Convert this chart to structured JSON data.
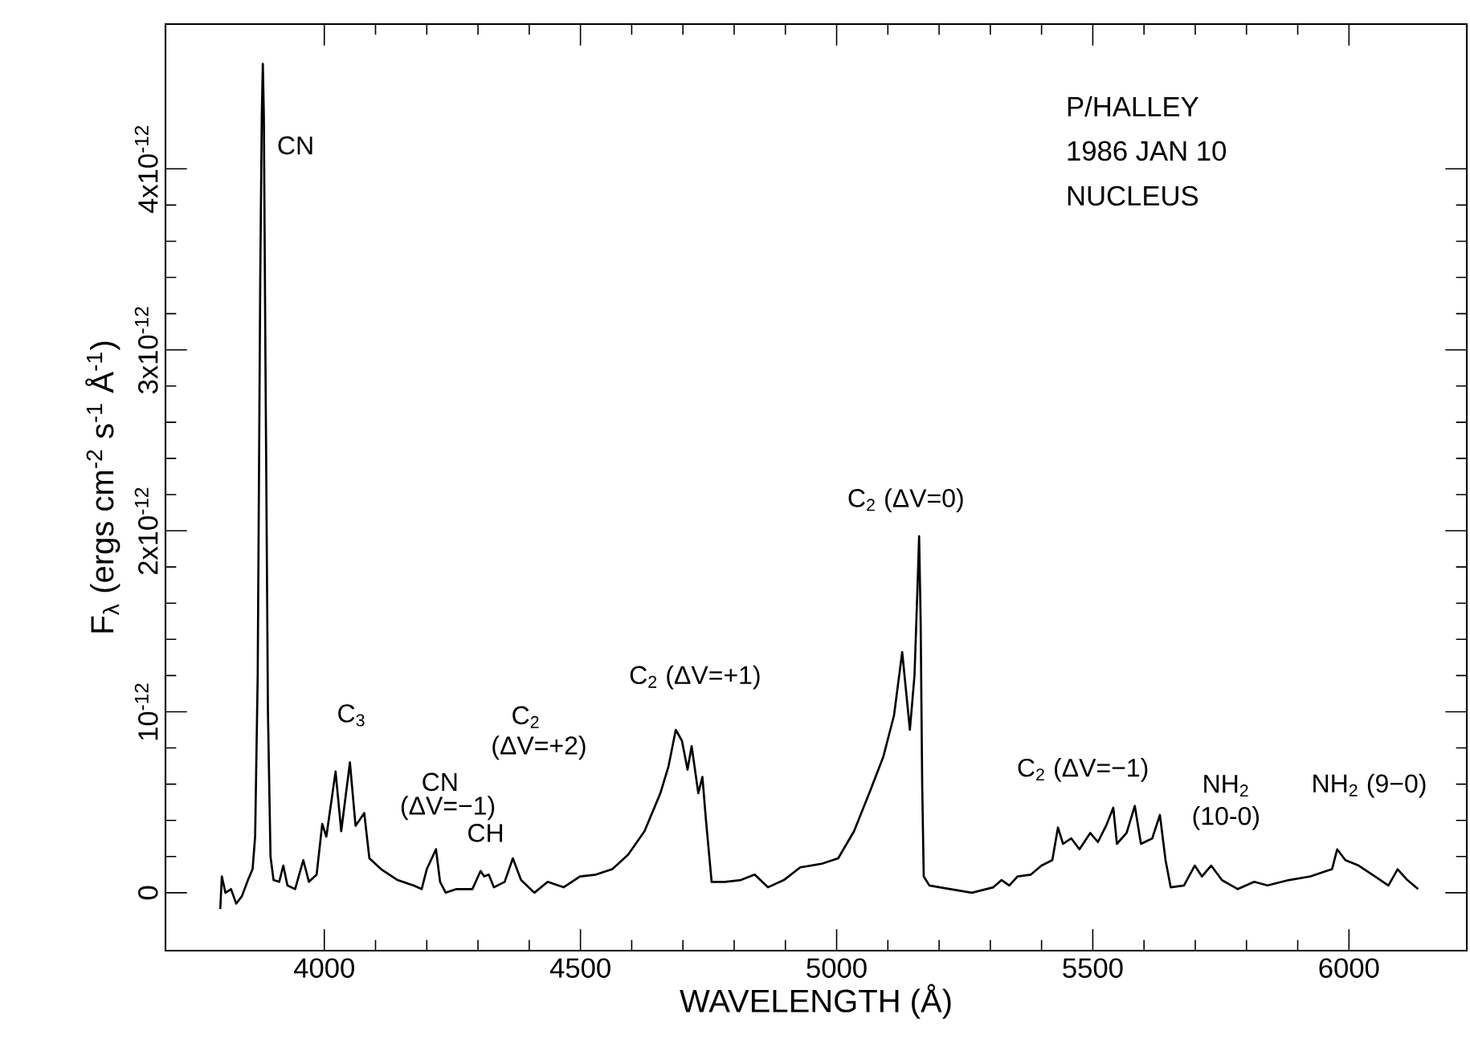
{
  "chart_data": {
    "type": "line",
    "xlabel": "WAVELENGTH (Å)",
    "ylabel": "F$_{λ}$  (ergs cm$^{-2}$ s$^{-1}$ Å$^{-1}$)",
    "xlim": [
      3690,
      6230
    ],
    "ylim": [
      -3.2e-13,
      4.8e-12
    ],
    "xticks": [
      4000,
      4500,
      5000,
      5500,
      6000
    ],
    "yticks": [
      {
        "value": 0,
        "label": "0"
      },
      {
        "value": 1e-12,
        "label": "10$^{-12}$"
      },
      {
        "value": 2e-12,
        "label": "2x10$^{-12}$"
      },
      {
        "value": 3e-12,
        "label": "3x10$^{-12}$"
      },
      {
        "value": 4e-12,
        "label": "4x10$^{-12}$"
      }
    ],
    "series": [
      {
        "color": "#000000",
        "x": [
          3797,
          3800,
          3807,
          3818,
          3828,
          3839,
          3851,
          3860,
          3865,
          3870,
          3875,
          3878,
          3880,
          3882,
          3885,
          3890,
          3895,
          3901,
          3912,
          3920,
          3928,
          3943,
          3959,
          3970,
          3985,
          3996,
          4004,
          4022,
          4033,
          4050,
          4061,
          4078,
          4088,
          4111,
          4143,
          4174,
          4190,
          4200,
          4218,
          4226,
          4237,
          4258,
          4289,
          4305,
          4312,
          4321,
          4331,
          4352,
          4368,
          4384,
          4410,
          4436,
          4467,
          4499,
          4530,
          4562,
          4593,
          4625,
          4656,
          4672,
          4686,
          4698,
          4709,
          4717,
          4730,
          4738,
          4745,
          4756,
          4782,
          4813,
          4840,
          4866,
          4897,
          4929,
          4971,
          5003,
          5034,
          5065,
          5091,
          5112,
          5128,
          5143,
          5152,
          5158,
          5161,
          5164,
          5167,
          5170,
          5181,
          5222,
          5264,
          5306,
          5322,
          5337,
          5353,
          5379,
          5400,
          5421,
          5432,
          5442,
          5458,
          5474,
          5495,
          5510,
          5526,
          5540,
          5547,
          5566,
          5582,
          5594,
          5616,
          5631,
          5642,
          5652,
          5678,
          5699,
          5713,
          5731,
          5752,
          5783,
          5815,
          5841,
          5883,
          5925,
          5956,
          5967,
          5977,
          5993,
          6019,
          6051,
          6077,
          6095,
          6114,
          6135
        ],
        "values": [
          -9e-14,
          9e-14,
          0,
          2e-14,
          -6e-14,
          -2e-14,
          7e-14,
          1.3e-13,
          3.1e-13,
          1.2e-12,
          3.4e-12,
          4.3e-12,
          4.58e-12,
          4.3e-12,
          3e-12,
          1e-12,
          2e-13,
          7e-14,
          6e-14,
          1.5e-13,
          4e-14,
          2e-14,
          1.8e-13,
          6e-14,
          1e-13,
          3.8e-13,
          3.1e-13,
          6.7e-13,
          3.4e-13,
          7.2e-13,
          3.7e-13,
          4.4e-13,
          1.9e-13,
          1.3e-13,
          7e-14,
          4e-14,
          2e-14,
          1.3e-13,
          2.4e-13,
          6e-14,
          0,
          2e-14,
          2e-14,
          1.2e-13,
          9e-14,
          1e-13,
          3e-14,
          6e-14,
          1.9e-13,
          7e-14,
          0,
          6e-14,
          3e-14,
          9e-14,
          1e-13,
          1.3e-13,
          2.1e-13,
          3.4e-13,
          5.5e-13,
          7e-13,
          9e-13,
          8.4e-13,
          6.8e-13,
          8.1e-13,
          5.5e-13,
          6.4e-13,
          4e-13,
          6e-14,
          6e-14,
          7e-14,
          1e-13,
          3e-14,
          7e-14,
          1.4e-13,
          1.6e-13,
          1.9e-13,
          3.4e-13,
          5.6e-13,
          7.5e-13,
          9.8e-13,
          1.33e-12,
          9e-13,
          1.2e-12,
          1.7e-12,
          1.97e-12,
          1.5e-12,
          6e-13,
          9e-14,
          4e-14,
          2e-14,
          0,
          3e-14,
          7e-14,
          4e-14,
          9e-14,
          1e-13,
          1.5e-13,
          1.8e-13,
          3.6e-13,
          2.7e-13,
          3e-13,
          2.4e-13,
          3.3e-13,
          2.8e-13,
          3.7e-13,
          4.7e-13,
          2.7e-13,
          3.3e-13,
          4.8e-13,
          2.7e-13,
          3e-13,
          4.3e-13,
          1.8e-13,
          3e-14,
          4e-14,
          1.5e-13,
          9e-14,
          1.5e-13,
          7e-14,
          2e-14,
          6e-14,
          4e-14,
          7e-14,
          9e-14,
          1.2e-13,
          1.3e-13,
          2.4e-13,
          1.8e-13,
          1.5e-13,
          9e-14,
          4e-14,
          1.3e-13,
          7e-14,
          2e-14
        ]
      }
    ],
    "annotations": [
      "P/HALLEY",
      "1986 JAN 10",
      "NUCLEUS",
      "CN",
      "C$_{3}$",
      "CN",
      "(ΔV=−1)",
      "CH",
      "C$_{2}$",
      "(ΔV=+2)",
      "C$_{2}$  (ΔV=+1)",
      "C$_{2}$  (ΔV=0)",
      "C$_{2}$  (ΔV=−1)",
      "NH$_{2}$",
      "(10-0)",
      "NH$_{2}$  (9−0)"
    ]
  }
}
